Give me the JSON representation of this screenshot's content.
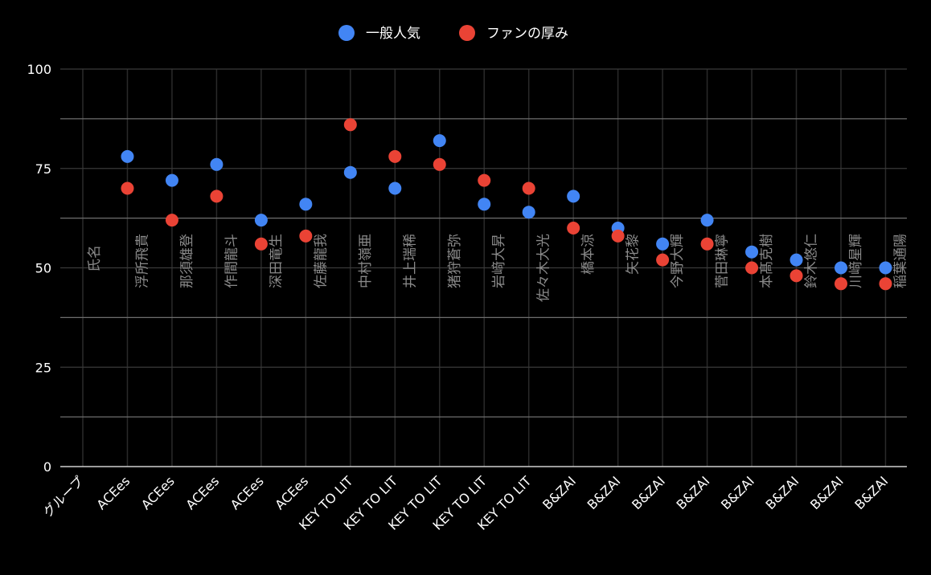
{
  "chart_data": {
    "type": "scatter",
    "legend": {
      "position": "top-center",
      "entries": [
        "一般人気",
        "ファンの厚み"
      ]
    },
    "colors": {
      "background": "#000000",
      "general": "#4285f4",
      "fan": "#ea4335",
      "gridline": "#6e6e6e",
      "minor_gridline": "#2a2a2a",
      "axis_text": "#ffffff",
      "inplot_text": "#8a8a8a"
    },
    "ylim": [
      0,
      100
    ],
    "yticks": [
      "100",
      "75",
      "50",
      "25",
      "0"
    ],
    "grid": true,
    "x_axis_header": "グループ",
    "name_header": "氏名",
    "categories": [
      {
        "group": "ACEes",
        "name": "浮所飛貴",
        "general": 78,
        "fan": 70
      },
      {
        "group": "ACEes",
        "name": "那須雄登",
        "general": 72,
        "fan": 62
      },
      {
        "group": "ACEes",
        "name": "作間龍斗",
        "general": 76,
        "fan": 68
      },
      {
        "group": "ACEes",
        "name": "深田竜生",
        "general": 62,
        "fan": 56
      },
      {
        "group": "ACEes",
        "name": "佐藤龍我",
        "general": 66,
        "fan": 58
      },
      {
        "group": "KEY TO LIT",
        "name": "中村嶺亜",
        "general": 74,
        "fan": 86
      },
      {
        "group": "KEY TO LIT",
        "name": "井上瑞稀",
        "general": 70,
        "fan": 78
      },
      {
        "group": "KEY TO LIT",
        "name": "猪狩蒼弥",
        "general": 82,
        "fan": 76
      },
      {
        "group": "KEY TO LIT",
        "name": "岩﨑大昇",
        "general": 66,
        "fan": 72
      },
      {
        "group": "KEY TO LIT",
        "name": "佐々木大光",
        "general": 64,
        "fan": 70
      },
      {
        "group": "B&ZAI",
        "name": "橋本涼",
        "general": 68,
        "fan": 60
      },
      {
        "group": "B&ZAI",
        "name": "矢花黎",
        "general": 60,
        "fan": 58
      },
      {
        "group": "B&ZAI",
        "name": "今野大輝",
        "general": 56,
        "fan": 52
      },
      {
        "group": "B&ZAI",
        "name": "菅田琳寧",
        "general": 62,
        "fan": 56
      },
      {
        "group": "B&ZAI",
        "name": "本髙克樹",
        "general": 54,
        "fan": 50
      },
      {
        "group": "B&ZAI",
        "name": "鈴木悠仁",
        "general": 52,
        "fan": 48
      },
      {
        "group": "B&ZAI",
        "name": "川﨑星輝",
        "general": 50,
        "fan": 46
      },
      {
        "group": "B&ZAI",
        "name": "稲葉通陽",
        "general": 50,
        "fan": 46
      }
    ],
    "series": [
      {
        "name": "一般人気",
        "key": "general"
      },
      {
        "name": "ファンの厚み",
        "key": "fan"
      }
    ]
  }
}
